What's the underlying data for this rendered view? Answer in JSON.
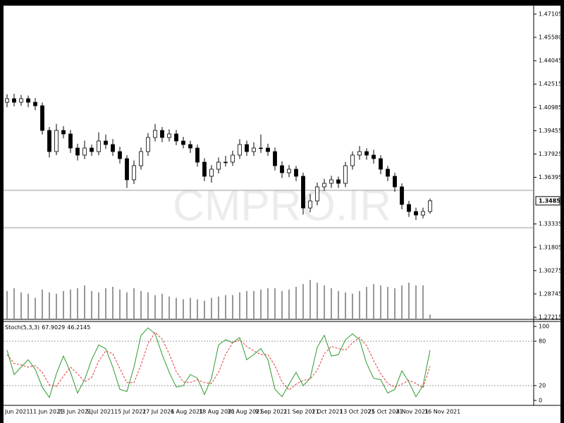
{
  "chart_data": [
    {
      "type": "candlestick",
      "watermark": "CMPRO.IR",
      "categories": [
        "Jun 2021",
        null,
        null,
        null,
        "11 Jun 2021",
        null,
        null,
        null,
        "23 Jun 2021",
        null,
        null,
        null,
        "5 Jul 2021",
        null,
        null,
        null,
        "15 Jul 2021",
        null,
        null,
        null,
        "27 Jul 2021",
        null,
        null,
        null,
        "6 Aug 2021",
        null,
        null,
        null,
        "18 Aug 2021",
        null,
        null,
        null,
        "30 Aug 2021",
        null,
        null,
        null,
        "9 Sep 2021",
        null,
        null,
        null,
        "21 Sep 2021",
        null,
        null,
        null,
        "1 Oct 2021",
        null,
        null,
        null,
        "13 Oct 2021",
        null,
        null,
        null,
        "25 Oct 2021",
        null,
        null,
        null,
        "4 Nov 2021",
        null,
        null,
        null,
        "16 Nov 2021"
      ],
      "open": [
        1.41322,
        1.41554,
        1.41322,
        1.41554,
        1.41322,
        1.41091,
        1.39472,
        1.38084,
        1.39472,
        1.39241,
        1.38316,
        1.37853,
        1.38316,
        1.38084,
        1.38778,
        1.38547,
        1.38084,
        1.37622,
        1.36234,
        1.37159,
        1.38084,
        1.39009,
        1.39472,
        1.39009,
        1.39241,
        1.38778,
        1.38547,
        1.38316,
        1.3739,
        1.36465,
        1.36928,
        1.3739,
        1.3739,
        1.37853,
        1.38547,
        1.38084,
        1.38316,
        1.38316,
        1.38084,
        1.37159,
        1.36696,
        1.36928,
        1.36465,
        1.34383,
        1.34846,
        1.35771,
        1.36003,
        1.36234,
        1.36003,
        1.37159,
        1.37853,
        1.38084,
        1.37853,
        1.37622,
        1.36928,
        1.36465,
        1.35771,
        1.34615,
        1.34152,
        1.33921,
        1.34152
      ],
      "high": [
        1.4185,
        1.4188,
        1.418,
        1.4176,
        1.416,
        1.413,
        1.397,
        1.399,
        1.3975,
        1.395,
        1.386,
        1.388,
        1.3855,
        1.3935,
        1.392,
        1.389,
        1.384,
        1.3785,
        1.375,
        1.3835,
        1.393,
        1.399,
        1.397,
        1.3955,
        1.395,
        1.3905,
        1.388,
        1.3855,
        1.3765,
        1.372,
        1.377,
        1.378,
        1.3815,
        1.389,
        1.388,
        1.387,
        1.392,
        1.386,
        1.3835,
        1.3745,
        1.372,
        1.3715,
        1.367,
        1.353,
        1.3605,
        1.363,
        1.365,
        1.3645,
        1.374,
        1.381,
        1.3845,
        1.383,
        1.382,
        1.3785,
        1.3715,
        1.367,
        1.36,
        1.3485,
        1.344,
        1.344,
        1.35
      ],
      "low": [
        1.41,
        1.4105,
        1.411,
        1.41,
        1.408,
        1.392,
        1.377,
        1.3785,
        1.3895,
        1.38,
        1.375,
        1.376,
        1.378,
        1.3785,
        1.3825,
        1.378,
        1.373,
        1.357,
        1.3595,
        1.369,
        1.378,
        1.3875,
        1.387,
        1.3875,
        1.385,
        1.383,
        1.38,
        1.371,
        1.3615,
        1.3605,
        1.3665,
        1.371,
        1.3715,
        1.376,
        1.378,
        1.378,
        1.38,
        1.378,
        1.3685,
        1.3635,
        1.364,
        1.3615,
        1.3395,
        1.341,
        1.3455,
        1.355,
        1.357,
        1.357,
        1.3575,
        1.369,
        1.3755,
        1.3755,
        1.373,
        1.366,
        1.3615,
        1.3545,
        1.343,
        1.338,
        1.336,
        1.337,
        1.34
      ],
      "close": [
        1.41554,
        1.41322,
        1.41554,
        1.41322,
        1.41091,
        1.39472,
        1.38084,
        1.39472,
        1.39241,
        1.38316,
        1.37853,
        1.38316,
        1.38084,
        1.38778,
        1.38547,
        1.38084,
        1.37622,
        1.36234,
        1.37159,
        1.38084,
        1.39009,
        1.39472,
        1.39009,
        1.39241,
        1.38778,
        1.38547,
        1.38316,
        1.3739,
        1.36465,
        1.36928,
        1.3739,
        1.3739,
        1.37853,
        1.38547,
        1.38084,
        1.38316,
        1.38316,
        1.38084,
        1.37159,
        1.36696,
        1.36928,
        1.36465,
        1.34383,
        1.34846,
        1.35771,
        1.36003,
        1.36234,
        1.36003,
        1.37159,
        1.37853,
        1.38084,
        1.37853,
        1.37622,
        1.36928,
        1.36465,
        1.35771,
        1.34615,
        1.34152,
        1.33921,
        1.34152,
        1.34854
      ],
      "volume": [
        40,
        44,
        38,
        36,
        30,
        42,
        38,
        36,
        40,
        42,
        44,
        48,
        40,
        38,
        44,
        46,
        42,
        38,
        44,
        40,
        38,
        34,
        36,
        32,
        30,
        28,
        30,
        28,
        26,
        30,
        32,
        34,
        34,
        38,
        40,
        40,
        42,
        44,
        44,
        40,
        42,
        46,
        50,
        56,
        52,
        48,
        44,
        40,
        38,
        36,
        40,
        46,
        50,
        48,
        46,
        44,
        48,
        52,
        48,
        48,
        6
      ],
      "up_color": "#ffffff",
      "down_color": "#000000",
      "volume_color": "#777777",
      "hlines": [
        1.3554,
        1.33088
      ],
      "hline_color": "#9a9a9a",
      "ylim": [
        1.27076,
        1.4766
      ],
      "yticks": [
        1.27215,
        1.28745,
        1.30275,
        1.31805,
        1.33335,
        1.36395,
        1.37925,
        1.39455,
        1.40985,
        1.42515,
        1.44045,
        {
          "value": 1.4558,
          "label": "1.45580"
        },
        1.47105
      ]
    },
    {
      "type": "line",
      "title": "Stoch(5,3,3)",
      "ylim": [
        -6.7,
        106.7
      ],
      "yticks": [
        0,
        20,
        80,
        100
      ],
      "levels": [
        20,
        80
      ],
      "series": [
        {
          "color": "#2e9a2e",
          "dashed": false,
          "values": [
            68,
            35,
            45,
            55,
            42,
            18,
            4,
            36,
            60,
            38,
            10,
            28,
            55,
            75,
            70,
            45,
            15,
            12,
            45,
            88,
            98,
            90,
            62,
            38,
            18,
            20,
            35,
            30,
            8,
            30,
            75,
            82,
            78,
            85,
            55,
            62,
            70,
            55,
            15,
            5,
            22,
            38,
            20,
            30,
            72,
            88,
            60,
            62,
            82,
            90,
            82,
            50,
            30,
            28,
            10,
            15,
            40,
            25,
            5,
            20,
            67.9029
          ]
        },
        {
          "color": "#e03a3a",
          "dashed": true,
          "values": [
            62,
            50,
            48,
            45,
            47,
            38,
            21,
            19,
            33,
            45,
            36,
            25,
            31,
            53,
            67,
            63,
            43,
            24,
            24,
            48,
            77,
            92,
            83,
            63,
            39,
            25,
            24,
            28,
            24,
            23,
            38,
            62,
            78,
            82,
            73,
            67,
            62,
            62,
            47,
            25,
            14,
            22,
            27,
            29,
            41,
            63,
            73,
            70,
            68,
            78,
            85,
            74,
            54,
            36,
            23,
            18,
            22,
            27,
            23,
            17,
            46.2145
          ]
        }
      ]
    }
  ]
}
